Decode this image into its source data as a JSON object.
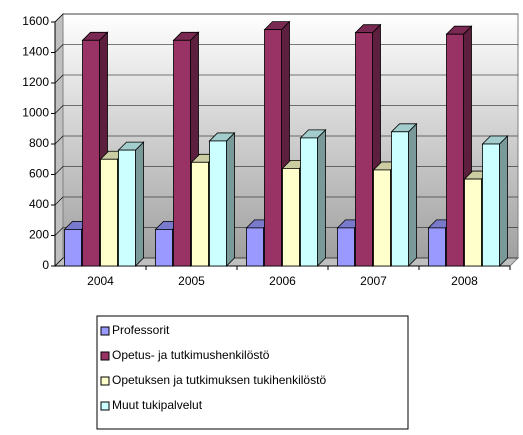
{
  "chart_data": {
    "type": "bar3d",
    "categories": [
      "2004",
      "2005",
      "2006",
      "2007",
      "2008"
    ],
    "series": [
      {
        "name": "Professorit",
        "color": "#9999ff",
        "values": [
          240,
          240,
          250,
          250,
          250
        ]
      },
      {
        "name": "Opetus- ja tutkimushenkilöstö",
        "color": "#993366",
        "values": [
          1480,
          1480,
          1550,
          1530,
          1520
        ]
      },
      {
        "name": "Opetuksen ja tutkimuksen tukihenkilöstö",
        "color": "#ffffcc",
        "values": [
          700,
          680,
          640,
          630,
          570
        ]
      },
      {
        "name": "Muut tukipalvelut",
        "color": "#ccffff",
        "values": [
          760,
          820,
          840,
          880,
          800
        ]
      }
    ],
    "ylim": [
      0,
      1600
    ],
    "yticks": [
      0,
      200,
      400,
      600,
      800,
      1000,
      1200,
      1400,
      1600
    ],
    "grid": true,
    "legend": "bottom"
  }
}
